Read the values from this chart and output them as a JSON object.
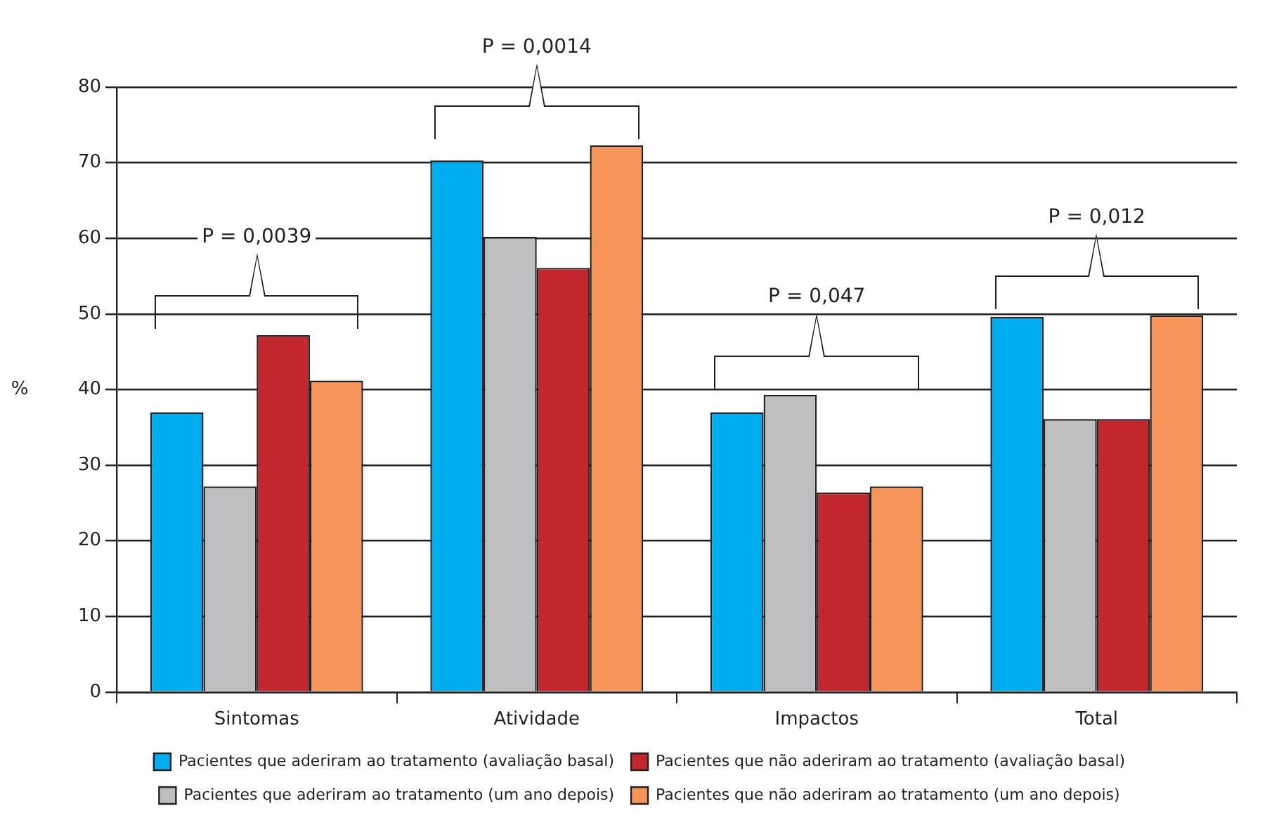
{
  "chart_data": {
    "type": "bar",
    "ylabel": "%",
    "categories": [
      "Sintomas",
      "Atividade",
      "Impactos",
      "Total"
    ],
    "series": [
      {
        "name": "Pacientes que aderiram ao tratamento (avaliação basal)",
        "color": "#00aeef",
        "values": [
          37,
          70.3,
          37,
          49.6
        ]
      },
      {
        "name": "Pacientes que aderiram ao tratamento (um ano depois)",
        "color": "#bcbec0",
        "values": [
          27.2,
          60.2,
          39.3,
          36.1
        ]
      },
      {
        "name": "Pacientes que não aderiram ao tratamento (avaliação basal)",
        "color": "#c1272d",
        "values": [
          47.2,
          56.1,
          26.4,
          36.1
        ]
      },
      {
        "name": "Pacientes que não aderiram ao tratamento (um ano depois)",
        "color": "#f7945a",
        "values": [
          41.2,
          72.3,
          27.2,
          49.8
        ]
      }
    ],
    "ylim": [
      0,
      80
    ],
    "yticks": [
      0,
      10,
      20,
      30,
      40,
      50,
      60,
      70,
      80
    ],
    "grid": "y",
    "legend": "bottom",
    "annotations": [
      "P = 0,0039",
      "P = 0,0014",
      "P = 0,047",
      "P = 0,012"
    ]
  }
}
